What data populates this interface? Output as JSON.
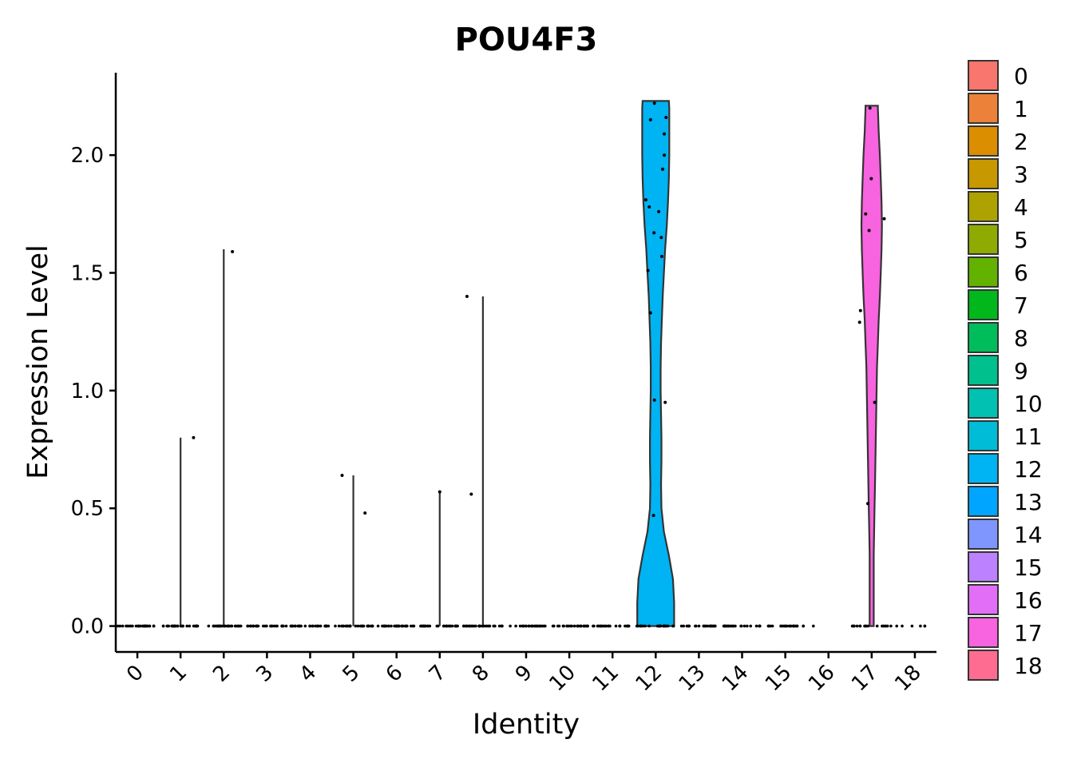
{
  "chart_data": {
    "type": "violin",
    "title": "POU4F3",
    "xlabel": "Identity",
    "ylabel": "Expression Level",
    "ylim": [
      -0.11,
      2.35
    ],
    "yticks": [
      "0.0",
      "0.5",
      "1.0",
      "1.5",
      "2.0"
    ],
    "ytick_values": [
      0.0,
      0.5,
      1.0,
      1.5,
      2.0
    ],
    "categories": [
      "0",
      "1",
      "2",
      "3",
      "4",
      "5",
      "6",
      "7",
      "8",
      "9",
      "10",
      "11",
      "12",
      "13",
      "14",
      "15",
      "16",
      "17",
      "18"
    ],
    "legend_placement": "right",
    "grid": false,
    "series": [
      {
        "name": "0",
        "color": "#F8766D",
        "max": 0.0,
        "profile": [],
        "points": []
      },
      {
        "name": "1",
        "color": "#EC8239",
        "max": 0.8,
        "profile": [],
        "points": [
          [
            0.3,
            0.8
          ]
        ]
      },
      {
        "name": "2",
        "color": "#DB8E00",
        "max": 1.6,
        "profile": [],
        "points": [
          [
            0.2,
            1.59
          ]
        ]
      },
      {
        "name": "3",
        "color": "#C79800",
        "max": 0.0,
        "profile": [],
        "points": []
      },
      {
        "name": "4",
        "color": "#AEA200",
        "max": 0.0,
        "profile": [],
        "points": []
      },
      {
        "name": "5",
        "color": "#8FAA00",
        "max": 0.64,
        "profile": [],
        "points": [
          [
            -0.26,
            0.64
          ],
          [
            0.27,
            0.48
          ]
        ]
      },
      {
        "name": "6",
        "color": "#64B200",
        "max": 0.0,
        "profile": [],
        "points": []
      },
      {
        "name": "7",
        "color": "#00B81B",
        "max": 0.57,
        "profile": [],
        "points": [
          [
            0.0,
            0.57
          ]
        ]
      },
      {
        "name": "8",
        "color": "#00BD5C",
        "max": 1.4,
        "profile": [],
        "points": [
          [
            -0.37,
            1.4
          ],
          [
            -0.27,
            0.56
          ]
        ]
      },
      {
        "name": "9",
        "color": "#00C08E",
        "max": 0.0,
        "profile": [],
        "points": []
      },
      {
        "name": "10",
        "color": "#00C1B2",
        "max": 0.0,
        "profile": [],
        "points": []
      },
      {
        "name": "11",
        "color": "#00BCD6",
        "max": 0.0,
        "profile": [],
        "points": []
      },
      {
        "name": "12",
        "color": "#00B3F2",
        "max": 2.23,
        "profile": [
          [
            0.0,
            0.45
          ],
          [
            0.1,
            0.45
          ],
          [
            0.2,
            0.42
          ],
          [
            0.3,
            0.32
          ],
          [
            0.4,
            0.2
          ],
          [
            0.5,
            0.14
          ],
          [
            0.6,
            0.13
          ],
          [
            0.7,
            0.14
          ],
          [
            0.8,
            0.14
          ],
          [
            0.9,
            0.13
          ],
          [
            1.0,
            0.12
          ],
          [
            1.1,
            0.12
          ],
          [
            1.2,
            0.13
          ],
          [
            1.3,
            0.15
          ],
          [
            1.4,
            0.17
          ],
          [
            1.5,
            0.2
          ],
          [
            1.6,
            0.23
          ],
          [
            1.7,
            0.27
          ],
          [
            1.8,
            0.3
          ],
          [
            1.9,
            0.32
          ],
          [
            2.0,
            0.33
          ],
          [
            2.1,
            0.33
          ],
          [
            2.2,
            0.33
          ],
          [
            2.23,
            0.32
          ]
        ],
        "points": [
          [
            -0.03,
            2.22
          ],
          [
            -0.12,
            2.15
          ],
          [
            0.24,
            2.16
          ],
          [
            0.2,
            2.09
          ],
          [
            0.2,
            2.0
          ],
          [
            0.16,
            1.94
          ],
          [
            -0.23,
            1.81
          ],
          [
            -0.15,
            1.78
          ],
          [
            0.07,
            1.76
          ],
          [
            -0.04,
            1.67
          ],
          [
            0.13,
            1.65
          ],
          [
            0.14,
            1.57
          ],
          [
            -0.18,
            1.51
          ],
          [
            -0.12,
            1.33
          ],
          [
            -0.03,
            0.96
          ],
          [
            0.22,
            0.95
          ],
          [
            -0.05,
            0.47
          ]
        ]
      },
      {
        "name": "13",
        "color": "#00A5FF",
        "max": 0.0,
        "profile": [],
        "points": []
      },
      {
        "name": "14",
        "color": "#7F96FF",
        "max": 0.0,
        "profile": [],
        "points": []
      },
      {
        "name": "15",
        "color": "#BC81FF",
        "max": 0.0,
        "profile": [],
        "points": []
      },
      {
        "name": "16",
        "color": "#E26EF7",
        "max": 0.0,
        "profile": [],
        "points": []
      },
      {
        "name": "17",
        "color": "#F863DF",
        "max": 2.21,
        "profile": [
          [
            0.0,
            0.05
          ],
          [
            0.1,
            0.05
          ],
          [
            0.2,
            0.05
          ],
          [
            0.3,
            0.05
          ],
          [
            0.4,
            0.06
          ],
          [
            0.5,
            0.07
          ],
          [
            0.6,
            0.08
          ],
          [
            0.7,
            0.09
          ],
          [
            0.8,
            0.1
          ],
          [
            0.9,
            0.11
          ],
          [
            1.0,
            0.12
          ],
          [
            1.1,
            0.13
          ],
          [
            1.2,
            0.15
          ],
          [
            1.3,
            0.17
          ],
          [
            1.4,
            0.2
          ],
          [
            1.5,
            0.22
          ],
          [
            1.6,
            0.24
          ],
          [
            1.7,
            0.25
          ],
          [
            1.8,
            0.24
          ],
          [
            1.9,
            0.22
          ],
          [
            2.0,
            0.2
          ],
          [
            2.1,
            0.17
          ],
          [
            2.2,
            0.15
          ],
          [
            2.21,
            0.15
          ]
        ],
        "points": [
          [
            -0.04,
            2.2
          ],
          [
            -0.01,
            1.9
          ],
          [
            -0.14,
            1.75
          ],
          [
            -0.06,
            1.68
          ],
          [
            0.29,
            1.73
          ],
          [
            -0.26,
            1.34
          ],
          [
            -0.28,
            1.29
          ],
          [
            0.07,
            0.95
          ],
          [
            -0.09,
            0.52
          ]
        ]
      },
      {
        "name": "18",
        "color": "#FF6C91",
        "max": 0.0,
        "profile": [],
        "points": []
      }
    ],
    "zero_points": [
      {
        "category": "0",
        "count": 28,
        "spread": 0.45
      },
      {
        "category": "1",
        "count": 28,
        "spread": 0.45
      },
      {
        "category": "2",
        "count": 28,
        "spread": 0.45
      },
      {
        "category": "3",
        "count": 28,
        "spread": 0.45
      },
      {
        "category": "4",
        "count": 28,
        "spread": 0.45
      },
      {
        "category": "5",
        "count": 28,
        "spread": 0.45
      },
      {
        "category": "6",
        "count": 28,
        "spread": 0.45
      },
      {
        "category": "7",
        "count": 28,
        "spread": 0.45
      },
      {
        "category": "8",
        "count": 28,
        "spread": 0.45
      },
      {
        "category": "9",
        "count": 24,
        "spread": 0.45
      },
      {
        "category": "10",
        "count": 24,
        "spread": 0.45
      },
      {
        "category": "11",
        "count": 24,
        "spread": 0.45
      },
      {
        "category": "12",
        "count": 24,
        "spread": 0.45
      },
      {
        "category": "13",
        "count": 24,
        "spread": 0.45
      },
      {
        "category": "14",
        "count": 24,
        "spread": 0.45
      },
      {
        "category": "15",
        "count": 24,
        "spread": 0.45
      },
      {
        "category": "16",
        "count": 1,
        "spread": 0.35
      },
      {
        "category": "17",
        "count": 18,
        "spread": 0.45
      },
      {
        "category": "18",
        "count": 6,
        "spread": 0.45
      }
    ]
  }
}
